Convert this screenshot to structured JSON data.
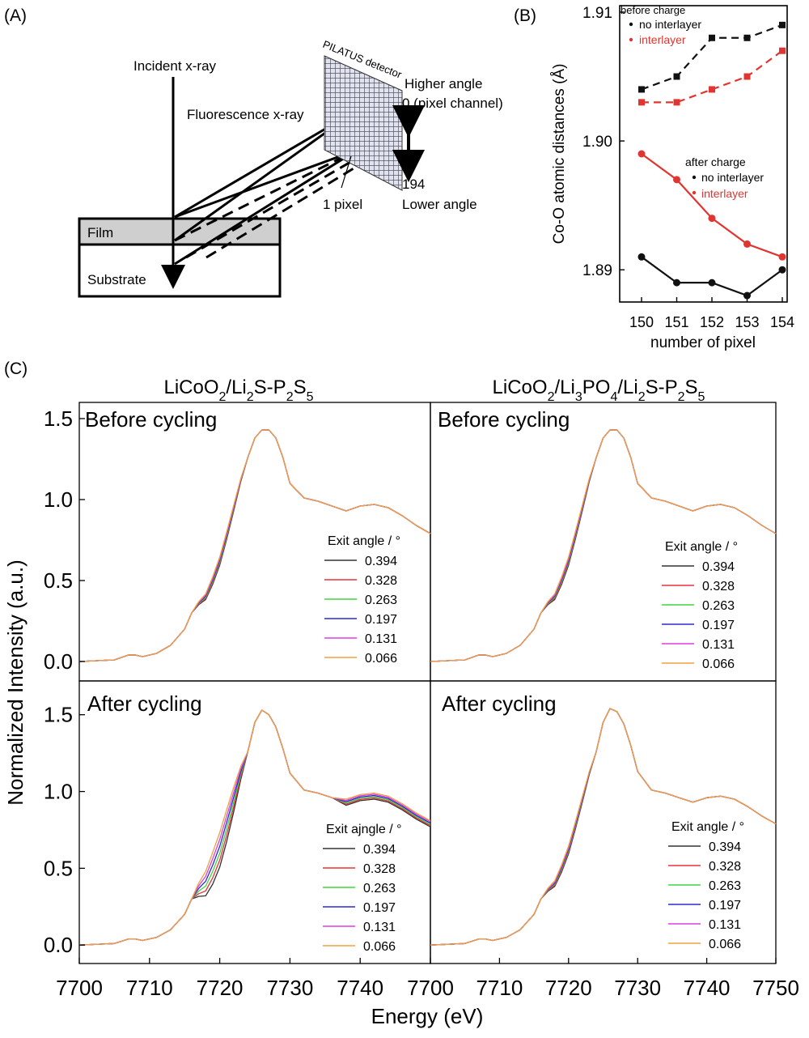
{
  "panel_labels": {
    "a": "(A)",
    "b": "(B)",
    "c": "(C)"
  },
  "schematic": {
    "incident": "Incident x-ray",
    "fluorescence": "Fluorescence x-ray",
    "detector": "PILATUS detector",
    "higher_angle": "Higher angle",
    "channel_top": "0 (pixel channel)",
    "channel_bottom": "194",
    "lower_angle": "Lower angle",
    "pixel": "1 pixel",
    "film": "Film",
    "substrate": "Substrate"
  },
  "colors": {
    "no_interlayer": "#111111",
    "interlayer": "#e03530"
  },
  "chart_data": [
    {
      "type": "line",
      "panel": "(B)",
      "xlabel": "number of pixel",
      "ylabel": "Co-O atomic distances (Å)",
      "x": [
        150,
        151,
        152,
        153,
        154
      ],
      "xticks": [
        "150",
        "151",
        "152",
        "153",
        "154"
      ],
      "yticks": [
        "1.89",
        "1.90",
        "1.91"
      ],
      "ylim": [
        1.8875,
        1.9105
      ],
      "legend_before": {
        "title": "before charge",
        "items": [
          "no interlayer",
          "interlayer"
        ]
      },
      "legend_after": {
        "title": "after charge",
        "items": [
          "no interlayer",
          "interlayer"
        ]
      },
      "series": [
        {
          "name": "no interlayer",
          "group": "before charge",
          "color": "#111111",
          "dash": true,
          "marker": "square",
          "values": [
            1.904,
            1.905,
            1.908,
            1.908,
            1.909
          ]
        },
        {
          "name": "interlayer",
          "group": "before charge",
          "color": "#e03530",
          "dash": true,
          "marker": "square",
          "values": [
            1.903,
            1.903,
            1.904,
            1.905,
            1.907
          ]
        },
        {
          "name": "interlayer",
          "group": "after charge",
          "color": "#e03530",
          "dash": false,
          "marker": "circle",
          "values": [
            1.899,
            1.897,
            1.894,
            1.892,
            1.891
          ]
        },
        {
          "name": "no interlayer",
          "group": "after charge",
          "color": "#111111",
          "dash": false,
          "marker": "circle",
          "values": [
            1.891,
            1.889,
            1.889,
            1.888,
            1.89
          ]
        }
      ]
    },
    {
      "type": "line",
      "panel": "(C)",
      "col_titles": [
        {
          "parts": [
            [
              "LiCoO",
              0
            ],
            [
              "2",
              1
            ],
            [
              "/Li",
              0
            ],
            [
              "2",
              1
            ],
            [
              "S-P",
              0
            ],
            [
              "2",
              1
            ],
            [
              "S",
              0
            ],
            [
              "5",
              1
            ]
          ]
        },
        {
          "parts": [
            [
              "LiCoO",
              0
            ],
            [
              "2",
              1
            ],
            [
              "/Li",
              0
            ],
            [
              "3",
              1
            ],
            [
              "PO",
              0
            ],
            [
              "4",
              1
            ],
            [
              "/Li",
              0
            ],
            [
              "2",
              1
            ],
            [
              "S-P",
              0
            ],
            [
              "2",
              1
            ],
            [
              "S",
              0
            ],
            [
              "5",
              1
            ]
          ]
        }
      ],
      "row_titles": [
        "Before cycling",
        "After cycling"
      ],
      "xlabel": "Energy (eV)",
      "ylabel": "Normalized Intensity (a.u.)",
      "xlim": [
        7700,
        7750
      ],
      "xticks_left": [
        "7700",
        "7710",
        "7720",
        "7730",
        "7740"
      ],
      "xticks_right": [
        "7700",
        "7710",
        "7720",
        "7730",
        "7740",
        "7750"
      ],
      "yticks_top": [
        "0.0",
        "0.5",
        "1.0",
        "1.5"
      ],
      "yticks_bottom": [
        "0.0",
        "0.5",
        "1.0",
        "1.5"
      ],
      "ylim_top": [
        -0.12,
        1.6
      ],
      "ylim_bottom": [
        -0.12,
        1.72
      ],
      "legend_titles": [
        "Exit angle / °",
        "Exit angle / °",
        "Exit ajngle / °",
        "Exit angle / °"
      ],
      "series_names": [
        "0.394",
        "0.328",
        "0.263",
        "0.197",
        "0.131",
        "0.066"
      ],
      "series_colors": [
        "#333333",
        "#e8323c",
        "#3ed53e",
        "#2b2bd0",
        "#e03ee0",
        "#f0a040"
      ],
      "base_curve": {
        "x": [
          7700,
          7705,
          7707,
          7708,
          7709,
          7711,
          7713,
          7715,
          7716,
          7717,
          7718,
          7719,
          7720,
          7721,
          7722,
          7723,
          7724,
          7725,
          7726,
          7727,
          7728,
          7729,
          7730,
          7732,
          7734,
          7736,
          7738,
          7740,
          7742,
          7744,
          7746,
          7748,
          7750
        ],
        "y": [
          0.0,
          0.01,
          0.04,
          0.04,
          0.03,
          0.05,
          0.1,
          0.2,
          0.3,
          0.36,
          0.4,
          0.5,
          0.62,
          0.78,
          0.95,
          1.12,
          1.26,
          1.38,
          1.43,
          1.43,
          1.38,
          1.26,
          1.1,
          1.01,
          0.99,
          0.96,
          0.93,
          0.96,
          0.97,
          0.95,
          0.9,
          0.84,
          0.79
        ]
      },
      "bottom_left_peak": {
        "x": [
          7725,
          7726,
          7727,
          7728,
          7729,
          7730
        ],
        "y": [
          1.45,
          1.53,
          1.5,
          1.42,
          1.28,
          1.12
        ]
      },
      "bottom_right_peak": {
        "x": [
          7725,
          7726,
          7727,
          7728,
          7729,
          7730
        ],
        "y": [
          1.45,
          1.54,
          1.52,
          1.44,
          1.3,
          1.13
        ]
      }
    }
  ]
}
